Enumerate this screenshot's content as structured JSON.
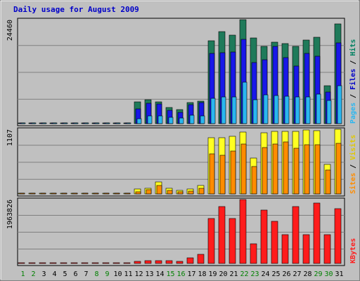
{
  "chart_data": {
    "type": "bar",
    "title": "Daily usage for August 2009",
    "days": [
      "1",
      "2",
      "3",
      "4",
      "5",
      "6",
      "7",
      "8",
      "9",
      "10",
      "11",
      "12",
      "13",
      "14",
      "15",
      "16",
      "17",
      "18",
      "19",
      "20",
      "21",
      "22",
      "23",
      "24",
      "25",
      "26",
      "27",
      "28",
      "29",
      "30",
      "31"
    ],
    "weekend_days": [
      "1",
      "2",
      "8",
      "9",
      "15",
      "16",
      "22",
      "23",
      "29",
      "30"
    ],
    "colors": {
      "title": "#0000c8",
      "weekend_label": "#008000",
      "weekday_label": "#000000",
      "hits": "#1f7a5a",
      "files": "#1818e8",
      "pages": "#2ab6f0",
      "visits": "#ffff22",
      "sites": "#ff8c00",
      "kbytes": "#ff1c1c",
      "panel_bg": "#c0c0c0"
    },
    "panels": [
      {
        "max_label": "24460",
        "ymax": 24460,
        "legend": [
          {
            "text": "Pages",
            "color": "#2ab6f0"
          },
          {
            "text": " / ",
            "color": "#000000"
          },
          {
            "text": "Files",
            "color": "#0000c8"
          },
          {
            "text": " / ",
            "color": "#000000"
          },
          {
            "text": "Hits",
            "color": "#008060"
          }
        ],
        "series": [
          {
            "name": "Hits",
            "color": "#1f7a5a",
            "values": [
              0,
              0,
              0,
              0,
              0,
              0,
              0,
              0,
              0,
              0,
              0,
              5200,
              5600,
              5200,
              3800,
              3300,
              5000,
              5300,
              19500,
              21600,
              20900,
              24460,
              20100,
              18100,
              19100,
              18900,
              18200,
              19600,
              20300,
              9000,
              23500
            ]
          },
          {
            "name": "Files",
            "color": "#1818e8",
            "values": [
              0,
              0,
              0,
              0,
              0,
              0,
              0,
              0,
              0,
              0,
              0,
              3500,
              4800,
              4700,
              3200,
              2600,
              4500,
              5000,
              16600,
              16700,
              16900,
              19800,
              14400,
              15100,
              18200,
              15500,
              13500,
              16600,
              15900,
              7500,
              19000
            ]
          },
          {
            "name": "Pages",
            "color": "#2ab6f0",
            "values": [
              0,
              0,
              0,
              0,
              0,
              0,
              0,
              0,
              0,
              0,
              0,
              1200,
              1800,
              1900,
              1500,
              1400,
              2000,
              1900,
              5900,
              6200,
              6300,
              9800,
              5600,
              6800,
              6600,
              6400,
              6200,
              6300,
              6900,
              5500,
              8900
            ]
          }
        ]
      },
      {
        "max_label": "1107",
        "ymax": 1107,
        "legend": [
          {
            "text": "Sites",
            "color": "#ff8c00"
          },
          {
            "text": " / ",
            "color": "#000000"
          },
          {
            "text": "Visits",
            "color": "#e0c800"
          }
        ],
        "series": [
          {
            "name": "Visits",
            "color": "#ffff22",
            "values": [
              0,
              0,
              0,
              0,
              0,
              0,
              0,
              0,
              0,
              0,
              10,
              80,
              100,
              200,
              95,
              60,
              80,
              140,
              960,
              960,
              990,
              1060,
              610,
              1050,
              1070,
              1070,
              1070,
              1100,
              1080,
              500,
              1107
            ]
          },
          {
            "name": "Sites",
            "color": "#ff8c00",
            "values": [
              0,
              0,
              0,
              0,
              0,
              0,
              0,
              0,
              0,
              0,
              5,
              40,
              70,
              150,
              60,
              40,
              50,
              100,
              690,
              660,
              730,
              850,
              470,
              790,
              860,
              890,
              780,
              840,
              840,
              410,
              870
            ]
          }
        ]
      },
      {
        "max_label": "1963826",
        "ymax": 1963826,
        "legend": [
          {
            "text": "KBytes",
            "color": "#ff1c1c"
          }
        ],
        "series": [
          {
            "name": "KBytes",
            "color": "#ff1c1c",
            "values": [
              0,
              0,
              0,
              0,
              0,
              0,
              0,
              0,
              0,
              0,
              20000,
              60000,
              80000,
              80000,
              80000,
              60000,
              170000,
              270000,
              1380000,
              1750000,
              1380000,
              1963826,
              610000,
              1630000,
              1300000,
              890000,
              1750000,
              890000,
              1850000,
              890000,
              1690000
            ]
          }
        ]
      }
    ]
  }
}
